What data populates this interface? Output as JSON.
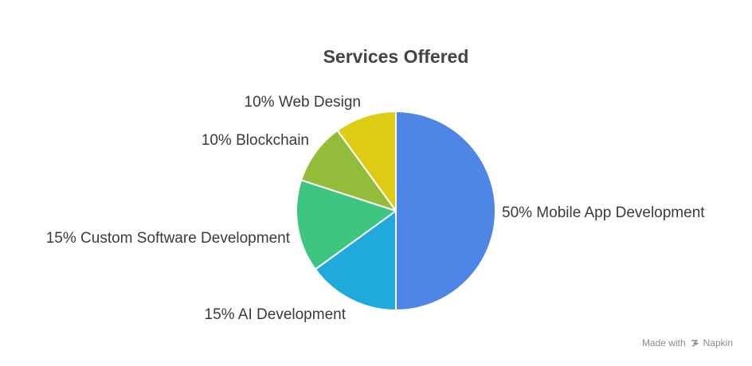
{
  "chart_data": {
    "type": "pie",
    "title": "Services Offered",
    "slices": [
      {
        "label": "Mobile App Development",
        "value": 50,
        "display": "50% Mobile App Development",
        "color": "#4F86E6"
      },
      {
        "label": "AI Development",
        "value": 15,
        "display": "15% AI Development",
        "color": "#20A9DB"
      },
      {
        "label": "Custom Software Development",
        "value": 15,
        "display": "15% Custom Software Development",
        "color": "#3EC57F"
      },
      {
        "label": "Blockchain",
        "value": 10,
        "display": "10% Blockchain",
        "color": "#93BC3A"
      },
      {
        "label": "Web Design",
        "value": 10,
        "display": "10% Web Design",
        "color": "#DECB14"
      }
    ],
    "legend": "none"
  },
  "watermark": {
    "prefix": "Made with",
    "brand": "Napkin",
    "icon": "napkin-logo-icon"
  }
}
